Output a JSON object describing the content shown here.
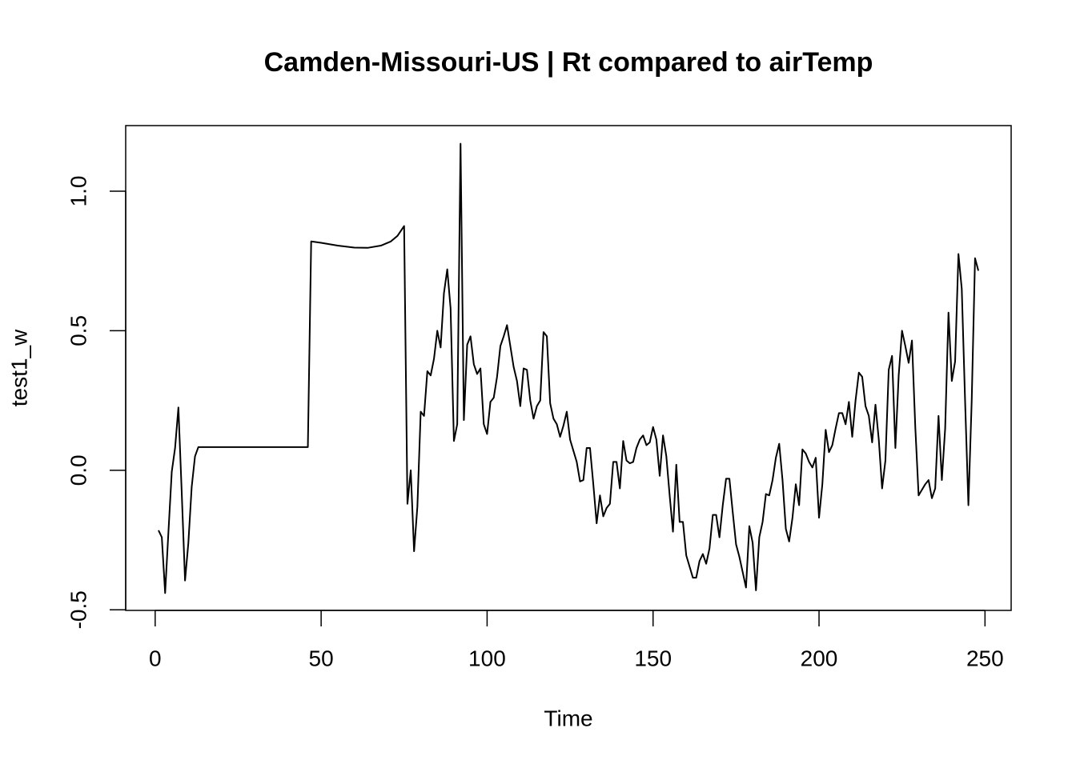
{
  "chart_data": {
    "type": "line",
    "title": "Camden-Missouri-US | Rt compared to airTemp",
    "xlabel": "Time",
    "ylabel": "test1_w",
    "color": "#000000",
    "x": [
      1,
      2,
      3,
      4,
      5,
      6,
      7,
      8,
      9,
      10,
      11,
      12,
      13,
      46,
      47,
      50,
      55,
      60,
      64,
      68,
      71,
      73,
      75,
      76,
      77,
      78,
      79,
      80,
      81,
      82,
      83,
      84,
      85,
      86,
      87,
      88,
      89,
      90,
      91,
      92,
      93,
      94,
      95,
      96,
      97,
      98,
      99,
      100,
      101,
      102,
      103,
      104,
      105,
      106,
      107,
      108,
      109,
      110,
      111,
      112,
      113,
      114,
      115,
      116,
      117,
      118,
      119,
      120,
      121,
      122,
      123,
      124,
      125,
      126,
      127,
      128,
      129,
      130,
      131,
      132,
      133,
      134,
      135,
      136,
      137,
      138,
      139,
      140,
      141,
      142,
      143,
      144,
      145,
      146,
      147,
      148,
      149,
      150,
      151,
      152,
      153,
      154,
      155,
      156,
      157,
      158,
      159,
      160,
      161,
      162,
      163,
      164,
      165,
      166,
      167,
      168,
      169,
      170,
      171,
      172,
      173,
      174,
      175,
      176,
      177,
      178,
      179,
      180,
      181,
      182,
      183,
      184,
      185,
      186,
      187,
      188,
      189,
      190,
      191,
      192,
      193,
      194,
      195,
      196,
      197,
      198,
      199,
      200,
      201,
      202,
      203,
      204,
      205,
      206,
      207,
      208,
      209,
      210,
      211,
      212,
      213,
      214,
      215,
      216,
      217,
      218,
      219,
      220,
      221,
      222,
      223,
      224,
      225,
      226,
      227,
      228,
      229,
      230,
      231,
      232,
      233,
      234,
      235,
      236,
      237,
      238,
      239,
      240,
      241,
      242,
      243,
      244,
      245,
      246,
      247,
      248
    ],
    "values": [
      -0.215,
      -0.24,
      -0.44,
      -0.22,
      -0.005,
      0.08,
      0.225,
      -0.08,
      -0.395,
      -0.26,
      -0.06,
      0.05,
      0.083,
      0.083,
      0.82,
      0.815,
      0.805,
      0.798,
      0.797,
      0.805,
      0.82,
      0.84,
      0.875,
      -0.12,
      0.0,
      -0.29,
      -0.13,
      0.21,
      0.195,
      0.355,
      0.34,
      0.4,
      0.5,
      0.44,
      0.635,
      0.72,
      0.58,
      0.105,
      0.165,
      1.17,
      0.18,
      0.45,
      0.48,
      0.38,
      0.345,
      0.365,
      0.165,
      0.13,
      0.245,
      0.26,
      0.335,
      0.445,
      0.48,
      0.52,
      0.445,
      0.37,
      0.32,
      0.23,
      0.365,
      0.36,
      0.25,
      0.185,
      0.23,
      0.25,
      0.495,
      0.48,
      0.24,
      0.185,
      0.165,
      0.12,
      0.16,
      0.21,
      0.11,
      0.07,
      0.03,
      -0.04,
      -0.035,
      0.08,
      0.08,
      -0.05,
      -0.19,
      -0.09,
      -0.165,
      -0.135,
      -0.12,
      0.03,
      0.03,
      -0.065,
      0.105,
      0.035,
      0.025,
      0.03,
      0.08,
      0.11,
      0.125,
      0.09,
      0.1,
      0.155,
      0.11,
      -0.02,
      0.125,
      0.05,
      -0.09,
      -0.22,
      0.02,
      -0.185,
      -0.185,
      -0.305,
      -0.345,
      -0.385,
      -0.385,
      -0.325,
      -0.3,
      -0.335,
      -0.28,
      -0.16,
      -0.16,
      -0.24,
      -0.125,
      -0.03,
      -0.03,
      -0.15,
      -0.265,
      -0.31,
      -0.365,
      -0.42,
      -0.2,
      -0.26,
      -0.43,
      -0.24,
      -0.185,
      -0.085,
      -0.09,
      -0.035,
      0.045,
      0.095,
      -0.035,
      -0.21,
      -0.255,
      -0.17,
      -0.05,
      -0.125,
      0.075,
      0.06,
      0.03,
      0.01,
      0.045,
      -0.17,
      -0.05,
      0.145,
      0.065,
      0.09,
      0.15,
      0.205,
      0.205,
      0.165,
      0.245,
      0.12,
      0.25,
      0.35,
      0.335,
      0.23,
      0.195,
      0.1,
      0.235,
      0.11,
      -0.065,
      0.035,
      0.36,
      0.41,
      0.08,
      0.34,
      0.5,
      0.445,
      0.385,
      0.465,
      0.155,
      -0.09,
      -0.07,
      -0.05,
      -0.035,
      -0.1,
      -0.065,
      0.195,
      -0.035,
      0.15,
      0.565,
      0.32,
      0.39,
      0.775,
      0.65,
      0.25,
      -0.125,
      0.25,
      0.76,
      0.715
    ],
    "xlim": [
      -8.88,
      257.88
    ],
    "ylim": [
      -0.502,
      1.235
    ],
    "xticks": [
      0,
      50,
      100,
      150,
      200,
      250
    ],
    "yticks": [
      -0.5,
      {
        "value": 0,
        "label": "0.0"
      },
      0.5,
      {
        "value": 1,
        "label": "1.0"
      }
    ]
  }
}
